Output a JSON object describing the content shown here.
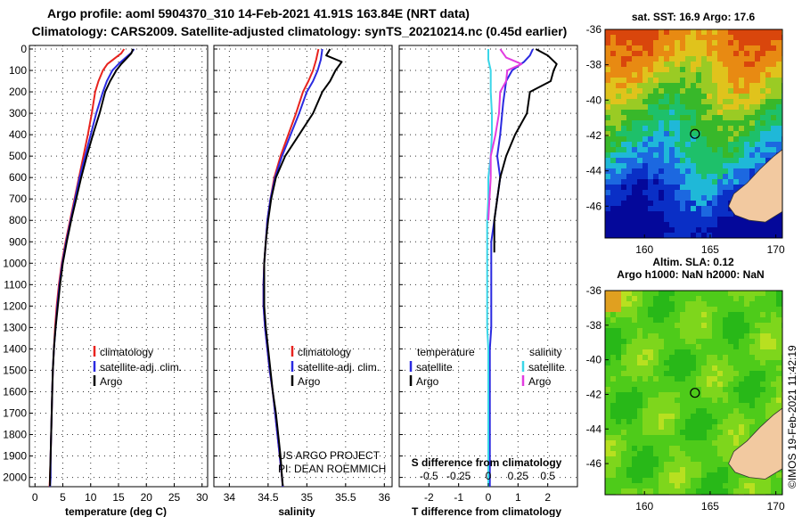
{
  "header": {
    "title_line1": "Argo profile: aoml 5904370_310 14-Feb-2021 41.91S 163.84E (NRT data)",
    "title_line2": "Climatology: CARS2009. Satellite-adjusted climatology: synTS_20210214.nc (0.45d earlier)"
  },
  "colors": {
    "climatology": "#e8231e",
    "satellite": "#2a2ae0",
    "argo": "#000000",
    "sat_salinity": "#3ad6e8",
    "argo_salinity_diff": "#e23ce0",
    "land": "#f2c9a0"
  },
  "credits": {
    "project": "US ARGO PROJECT",
    "pi": "PI: DEAN ROEMMICH"
  },
  "timestamp": "©IMOS 19-Feb-2021 11:42:19",
  "chart_data": [
    {
      "type": "line",
      "title": "",
      "xlabel": "temperature (deg C)",
      "ylabel": "",
      "xlim": [
        -1,
        31
      ],
      "ylim": [
        2060,
        0
      ],
      "xticks": [
        "0",
        "5",
        "10",
        "15",
        "20",
        "25",
        "30"
      ],
      "yticks": [
        "0",
        "100",
        "200",
        "300",
        "400",
        "500",
        "600",
        "700",
        "800",
        "900",
        "1000",
        "1100",
        "1200",
        "1300",
        "1400",
        "1500",
        "1600",
        "1700",
        "1800",
        "1900",
        "2000"
      ],
      "legend": [
        "climatology",
        "satellite-adj. clim.",
        "Argo"
      ],
      "grid": true,
      "series": [
        {
          "name": "climatology",
          "color": "#e8231e",
          "points": [
            [
              16.0,
              0
            ],
            [
              15.5,
              20
            ],
            [
              14.5,
              40
            ],
            [
              13.0,
              70
            ],
            [
              12.2,
              100
            ],
            [
              11.4,
              150
            ],
            [
              10.8,
              200
            ],
            [
              10.2,
              300
            ],
            [
              9.5,
              400
            ],
            [
              8.7,
              500
            ],
            [
              7.9,
              600
            ],
            [
              7.1,
              700
            ],
            [
              6.3,
              800
            ],
            [
              5.5,
              900
            ],
            [
              4.8,
              1000
            ],
            [
              4.3,
              1100
            ],
            [
              3.9,
              1200
            ],
            [
              3.6,
              1300
            ],
            [
              3.4,
              1400
            ],
            [
              3.2,
              1500
            ],
            [
              3.1,
              1600
            ],
            [
              3.0,
              1700
            ],
            [
              2.9,
              1800
            ],
            [
              2.8,
              1900
            ],
            [
              2.7,
              2000
            ],
            [
              2.6,
              2050
            ]
          ]
        },
        {
          "name": "satellite-adj. clim.",
          "color": "#2a2ae0",
          "points": [
            [
              17.8,
              0
            ],
            [
              17.2,
              20
            ],
            [
              16.3,
              40
            ],
            [
              15.0,
              70
            ],
            [
              13.9,
              100
            ],
            [
              12.9,
              150
            ],
            [
              12.2,
              200
            ],
            [
              11.0,
              300
            ],
            [
              10.0,
              400
            ],
            [
              9.0,
              500
            ],
            [
              8.0,
              600
            ],
            [
              7.2,
              700
            ],
            [
              6.4,
              800
            ],
            [
              5.6,
              900
            ],
            [
              4.9,
              1000
            ],
            [
              4.4,
              1100
            ],
            [
              4.0,
              1200
            ],
            [
              3.7,
              1300
            ],
            [
              3.4,
              1400
            ],
            [
              3.2,
              1500
            ],
            [
              3.1,
              1600
            ],
            [
              3.0,
              1700
            ],
            [
              2.9,
              1800
            ],
            [
              2.8,
              1900
            ],
            [
              2.8,
              2000
            ],
            [
              2.7,
              2050
            ]
          ]
        },
        {
          "name": "Argo",
          "color": "#000000",
          "points": [
            [
              17.6,
              0
            ],
            [
              17.3,
              20
            ],
            [
              16.6,
              40
            ],
            [
              15.5,
              70
            ],
            [
              14.6,
              100
            ],
            [
              13.5,
              150
            ],
            [
              12.6,
              200
            ],
            [
              11.6,
              300
            ],
            [
              10.4,
              400
            ],
            [
              9.3,
              500
            ],
            [
              8.3,
              600
            ],
            [
              7.4,
              700
            ],
            [
              6.5,
              800
            ],
            [
              5.7,
              900
            ],
            [
              5.0,
              1000
            ],
            [
              4.5,
              1100
            ],
            [
              4.1,
              1200
            ],
            [
              3.7,
              1300
            ],
            [
              3.4,
              1400
            ],
            [
              3.2,
              1500
            ],
            [
              3.1,
              1600
            ],
            [
              3.0,
              1700
            ],
            [
              2.9,
              1800
            ],
            [
              2.8,
              1900
            ],
            [
              2.7,
              2000
            ],
            [
              2.7,
              2040
            ]
          ]
        }
      ]
    },
    {
      "type": "line",
      "title": "",
      "xlabel": "salinity",
      "xlim": [
        33.8,
        36.1
      ],
      "ylim": [
        2060,
        0
      ],
      "xticks": [
        "34",
        "34.5",
        "35",
        "35.5",
        "36"
      ],
      "legend": [
        "climatology",
        "satellite-adj. clim.",
        "Argo"
      ],
      "grid": true,
      "series": [
        {
          "name": "climatology",
          "color": "#e8231e",
          "points": [
            [
              35.15,
              0
            ],
            [
              35.12,
              50
            ],
            [
              35.08,
              100
            ],
            [
              35.02,
              150
            ],
            [
              34.95,
              200
            ],
            [
              34.86,
              300
            ],
            [
              34.76,
              400
            ],
            [
              34.66,
              500
            ],
            [
              34.58,
              600
            ],
            [
              34.53,
              700
            ],
            [
              34.49,
              800
            ],
            [
              34.47,
              900
            ],
            [
              34.45,
              1000
            ],
            [
              34.44,
              1100
            ],
            [
              34.44,
              1200
            ],
            [
              34.46,
              1300
            ],
            [
              34.49,
              1400
            ],
            [
              34.52,
              1500
            ],
            [
              34.56,
              1600
            ],
            [
              34.59,
              1700
            ],
            [
              34.62,
              1800
            ],
            [
              34.65,
              1900
            ],
            [
              34.68,
              2000
            ],
            [
              34.69,
              2050
            ]
          ]
        },
        {
          "name": "satellite-adj. clim.",
          "color": "#2a2ae0",
          "points": [
            [
              35.2,
              0
            ],
            [
              35.18,
              50
            ],
            [
              35.14,
              100
            ],
            [
              35.08,
              150
            ],
            [
              35.0,
              200
            ],
            [
              34.9,
              300
            ],
            [
              34.79,
              400
            ],
            [
              34.68,
              500
            ],
            [
              34.59,
              600
            ],
            [
              34.53,
              700
            ],
            [
              34.49,
              800
            ],
            [
              34.47,
              900
            ],
            [
              34.45,
              1000
            ],
            [
              34.44,
              1100
            ],
            [
              34.44,
              1200
            ],
            [
              34.46,
              1300
            ],
            [
              34.49,
              1400
            ],
            [
              34.52,
              1500
            ],
            [
              34.56,
              1600
            ],
            [
              34.59,
              1700
            ],
            [
              34.62,
              1800
            ],
            [
              34.65,
              1900
            ],
            [
              34.68,
              2000
            ],
            [
              34.69,
              2050
            ]
          ]
        },
        {
          "name": "Argo",
          "color": "#000000",
          "points": [
            [
              35.3,
              0
            ],
            [
              35.25,
              30
            ],
            [
              35.45,
              60
            ],
            [
              35.37,
              100
            ],
            [
              35.3,
              150
            ],
            [
              35.2,
              200
            ],
            [
              35.08,
              300
            ],
            [
              34.9,
              400
            ],
            [
              34.72,
              500
            ],
            [
              34.6,
              600
            ],
            [
              34.54,
              700
            ],
            [
              34.5,
              800
            ],
            [
              34.47,
              900
            ],
            [
              34.45,
              1000
            ],
            [
              34.45,
              1100
            ],
            [
              34.45,
              1200
            ],
            [
              34.47,
              1300
            ],
            [
              34.5,
              1400
            ],
            [
              34.53,
              1500
            ],
            [
              34.56,
              1600
            ],
            [
              34.6,
              1700
            ],
            [
              34.63,
              1800
            ],
            [
              34.66,
              1900
            ],
            [
              34.68,
              2000
            ],
            [
              34.69,
              2040
            ]
          ]
        }
      ]
    },
    {
      "type": "line",
      "title": "",
      "xlabel": "T difference from climatology",
      "x2label": "S difference from climatology",
      "xlim": [
        -3,
        3
      ],
      "x2lim": [
        -0.75,
        0.75
      ],
      "ylim": [
        2060,
        0
      ],
      "xticks": [
        "-2",
        "-1",
        "0",
        "1",
        "2"
      ],
      "x2ticks": [
        "-0.5",
        "-0.25",
        "0",
        "0.25",
        "0.5"
      ],
      "legend": [
        "temperature",
        "satellite",
        "Argo",
        "salinity",
        "satellite",
        "Argo"
      ],
      "grid": true,
      "series": [
        {
          "name": "satellite",
          "axis": "T",
          "color": "#2a2ae0",
          "points": [
            [
              1.5,
              0
            ],
            [
              1.4,
              30
            ],
            [
              1.2,
              60
            ],
            [
              0.8,
              100
            ],
            [
              0.6,
              150
            ],
            [
              0.5,
              250
            ],
            [
              0.4,
              400
            ],
            [
              0.3,
              500
            ],
            [
              0.4,
              600
            ],
            [
              0.3,
              700
            ],
            [
              0.2,
              800
            ],
            [
              0.1,
              900
            ],
            [
              0.1,
              1000
            ],
            [
              0.1,
              1100
            ],
            [
              0.1,
              1200
            ],
            [
              0.1,
              1300
            ],
            [
              0.05,
              1400
            ],
            [
              0.05,
              1600
            ],
            [
              0.05,
              1800
            ],
            [
              0.05,
              2000
            ],
            [
              0.05,
              2050
            ]
          ]
        },
        {
          "name": "Argo",
          "axis": "T",
          "color": "#000000",
          "points": [
            [
              1.6,
              0
            ],
            [
              2.0,
              30
            ],
            [
              2.3,
              70
            ],
            [
              2.2,
              100
            ],
            [
              2.1,
              150
            ],
            [
              1.4,
              200
            ],
            [
              1.3,
              300
            ],
            [
              0.9,
              400
            ],
            [
              0.6,
              500
            ],
            [
              0.4,
              600
            ],
            [
              0.3,
              700
            ],
            [
              0.2,
              800
            ],
            [
              0.2,
              900
            ],
            [
              0.2,
              950
            ]
          ]
        },
        {
          "name": "satellite",
          "axis": "S",
          "color": "#3ad6e8",
          "points": [
            [
              0.0,
              0
            ],
            [
              0.0,
              50
            ],
            [
              0.02,
              100
            ],
            [
              0.02,
              200
            ],
            [
              0.03,
              300
            ],
            [
              0.03,
              400
            ],
            [
              0.02,
              500
            ],
            [
              0.0,
              600
            ],
            [
              0.0,
              700
            ],
            [
              -0.01,
              800
            ],
            [
              -0.01,
              900
            ],
            [
              -0.01,
              1000
            ],
            [
              -0.01,
              1100
            ],
            [
              -0.01,
              1200
            ],
            [
              -0.01,
              1300
            ],
            [
              0.0,
              1400
            ],
            [
              0.0,
              1600
            ],
            [
              0.0,
              1800
            ],
            [
              0.0,
              2000
            ],
            [
              0.0,
              2050
            ]
          ]
        },
        {
          "name": "Argo",
          "axis": "S",
          "color": "#e23ce0",
          "points": [
            [
              0.1,
              0
            ],
            [
              0.15,
              40
            ],
            [
              0.28,
              70
            ],
            [
              0.16,
              100
            ],
            [
              0.15,
              150
            ],
            [
              0.1,
              200
            ],
            [
              0.09,
              300
            ],
            [
              0.06,
              400
            ],
            [
              0.02,
              500
            ],
            [
              0.02,
              600
            ],
            [
              0.01,
              700
            ],
            [
              0.0,
              800
            ]
          ]
        }
      ]
    },
    {
      "type": "heatmap",
      "title": "sat. SST: 16.9 Argo: 17.6",
      "xticks": [
        "160",
        "165",
        "170"
      ],
      "yticks": [
        "-36",
        "-38",
        "-40",
        "-42",
        "-44",
        "-46"
      ],
      "xlim": [
        157,
        170.5
      ],
      "ylim": [
        -47.8,
        -36
      ],
      "argo_position": [
        163.84,
        -41.91
      ]
    },
    {
      "type": "heatmap",
      "title": "Altim. SLA: 0.12",
      "subtitle": "Argo h1000: NaN h2000: NaN",
      "xticks": [
        "160",
        "165",
        "170"
      ],
      "yticks": [
        "-36",
        "-38",
        "-40",
        "-42",
        "-44",
        "-46"
      ],
      "xlim": [
        157,
        170.5
      ],
      "ylim": [
        -47.8,
        -36
      ],
      "argo_position": [
        163.84,
        -41.91
      ]
    }
  ]
}
